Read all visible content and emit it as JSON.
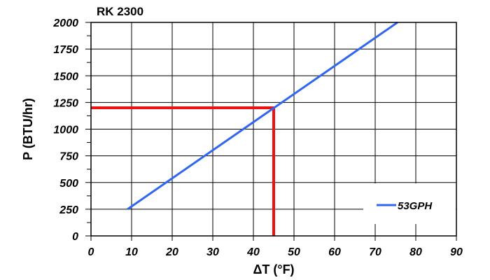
{
  "chart_data": {
    "type": "line",
    "title": "RK 2300",
    "xlabel": "ΔT (°F)",
    "ylabel": "P (BTU/hr)",
    "xlim": [
      0,
      90
    ],
    "ylim": [
      0,
      2000
    ],
    "x_ticks": [
      "0",
      "10",
      "20",
      "30",
      "40",
      "50",
      "60",
      "70",
      "80",
      "90"
    ],
    "y_ticks": [
      "0",
      "250",
      "500",
      "750",
      "1000",
      "1250",
      "1500",
      "1750",
      "2000"
    ],
    "grid": true,
    "legend_position": "bottom-right",
    "series": [
      {
        "name": "53GPH",
        "color": "#3366ee",
        "x": [
          9,
          75.5
        ],
        "y": [
          250,
          2000
        ]
      }
    ],
    "reference_lines": [
      {
        "color": "#ee1111",
        "x": [
          0,
          45,
          45
        ],
        "y": [
          1200,
          1200,
          0
        ]
      }
    ]
  }
}
